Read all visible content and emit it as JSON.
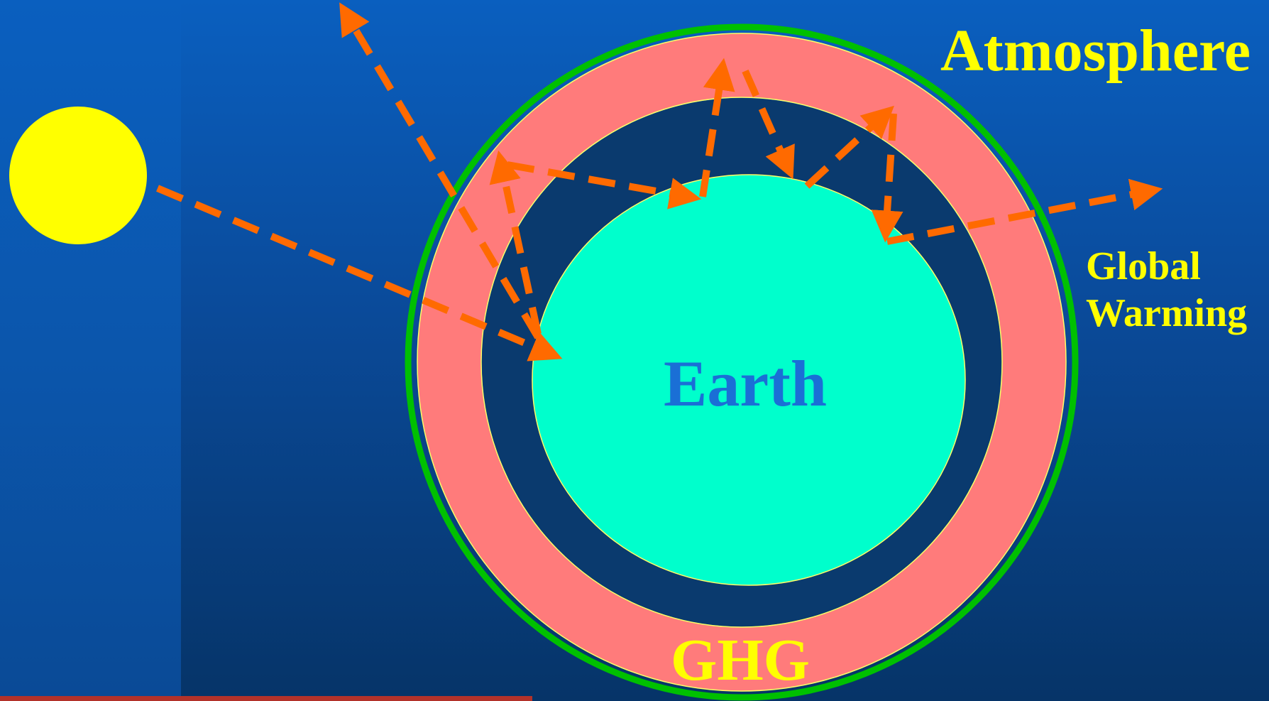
{
  "labels": {
    "atmosphere": "Atmosphere",
    "global_warming": "Global Warming",
    "ghg": "GHG",
    "earth": "Earth"
  },
  "colors": {
    "background_top": "#0a5fbf",
    "background_bottom": "#063468",
    "sun": "#ffff00",
    "earth": "#00ffcc",
    "ghg_layer": "#ff7b7b",
    "atmosphere_ring": "#00c000",
    "arrows": "#ff6a00",
    "label_text": "#ffff00",
    "earth_text": "#1a6fd6"
  },
  "icons": {
    "sun": "sun-icon"
  }
}
